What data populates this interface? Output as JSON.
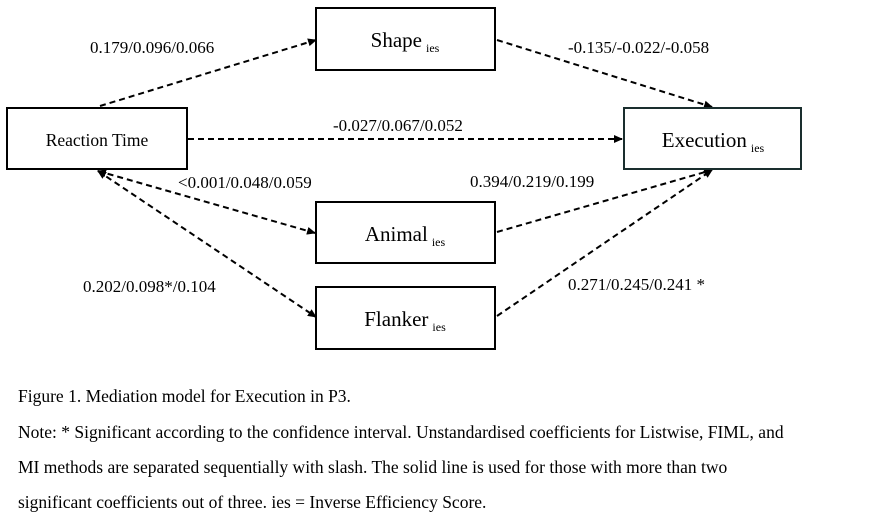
{
  "nodes": {
    "reaction_time": {
      "label": "Reaction Time",
      "sub": ""
    },
    "shape": {
      "label": "Shape",
      "sub": "ies"
    },
    "execution": {
      "label": "Execution",
      "sub": "ies"
    },
    "animal": {
      "label": "Animal",
      "sub": "ies"
    },
    "flanker": {
      "label": "Flanker",
      "sub": "ies"
    }
  },
  "paths": {
    "rt_to_shape": "0.179/0.096/0.066",
    "shape_to_execution": "-0.135/-0.022/-0.058",
    "rt_to_execution": "-0.027/0.067/0.052",
    "rt_to_animal": "<0.001/0.048/0.059",
    "animal_to_execution": "0.394/0.219/0.199",
    "rt_to_flanker": "0.202/0.098*/0.104",
    "flanker_to_execution": "0.271/0.245/0.241 *"
  },
  "caption": {
    "title": "Figure 1. Mediation model for Execution in P3.",
    "note_line1": "Note: * Significant according to the confidence interval. Unstandardised coefficients for Listwise, FIML, and",
    "note_line2": "MI methods are separated sequentially with slash. The solid line is used for those with more than two",
    "note_line3": "significant coefficients out of three. ies = Inverse Efficiency Score."
  },
  "colors": {
    "stroke": "#000000",
    "execution_border": "#1a2e2e"
  }
}
